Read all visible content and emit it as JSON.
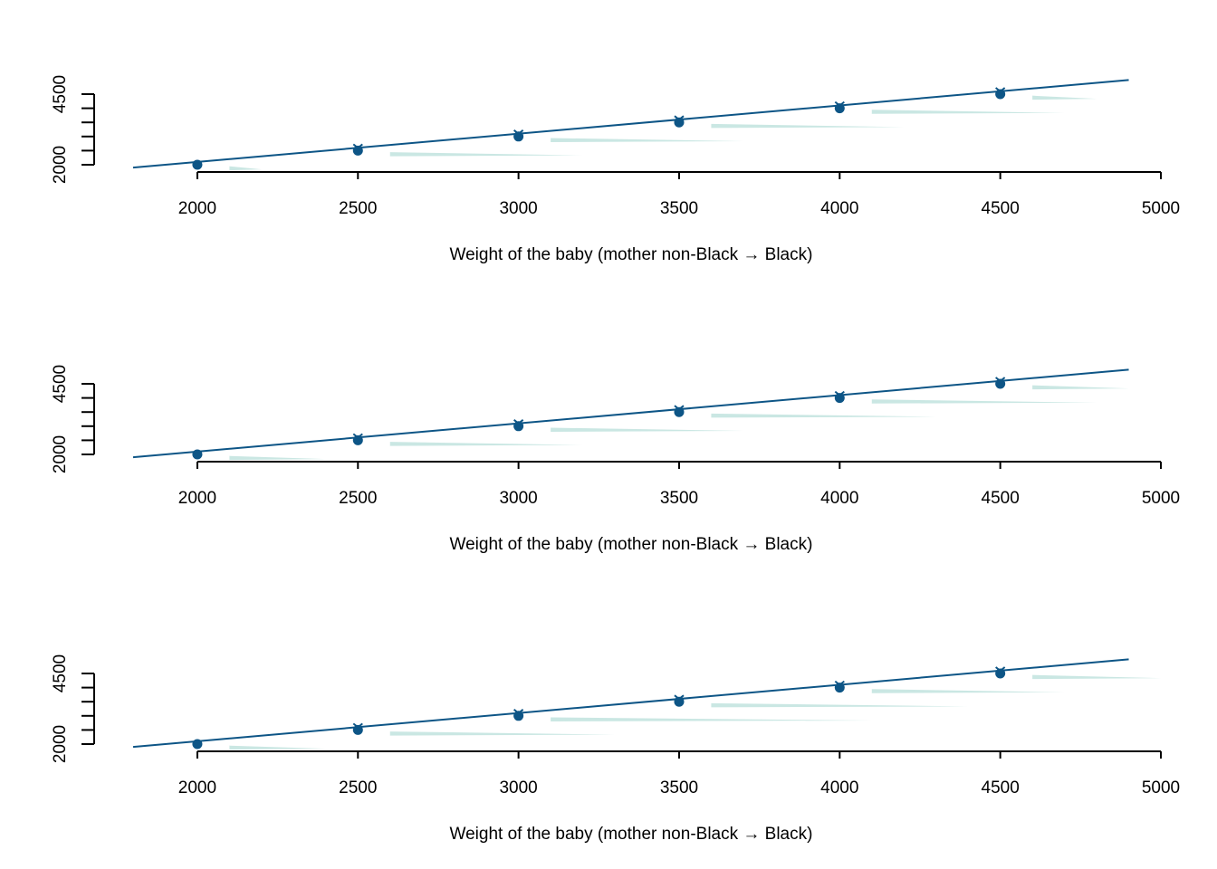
{
  "chart_data": [
    {
      "type": "line",
      "xlabel": "Weight of the baby (mother non-Black → Black)",
      "xlim": [
        1800,
        5000
      ],
      "ylim": [
        2000,
        4500
      ],
      "x_ticks": [
        2000,
        2500,
        3000,
        3500,
        4000,
        4500,
        5000
      ],
      "y_tick_labels": [
        2000,
        4500
      ],
      "y_minor_ticks": [
        2000,
        2500,
        3000,
        3500,
        4000,
        4500
      ],
      "grid": false,
      "line": {
        "x": [
          1800,
          4900
        ],
        "y": [
          1900,
          5000
        ]
      },
      "points": {
        "x": [
          2000,
          2500,
          3000,
          3500,
          4000,
          4500
        ],
        "y": [
          2000,
          2500,
          3000,
          3500,
          4000,
          4500
        ]
      },
      "densities": [
        {
          "x_start": 2100,
          "x_end": 2200,
          "y": 1850
        },
        {
          "x_start": 2600,
          "x_end": 3200,
          "y": 2350
        },
        {
          "x_start": 3100,
          "x_end": 3700,
          "y": 2850
        },
        {
          "x_start": 3600,
          "x_end": 4200,
          "y": 3350
        },
        {
          "x_start": 4100,
          "x_end": 4700,
          "y": 3850
        },
        {
          "x_start": 4600,
          "x_end": 4800,
          "y": 4350
        }
      ]
    },
    {
      "type": "line",
      "xlabel": "Weight of the baby (mother non-Black → Black)",
      "xlim": [
        1800,
        5000
      ],
      "ylim": [
        2000,
        4500
      ],
      "x_ticks": [
        2000,
        2500,
        3000,
        3500,
        4000,
        4500,
        5000
      ],
      "y_tick_labels": [
        2000,
        4500
      ],
      "y_minor_ticks": [
        2000,
        2500,
        3000,
        3500,
        4000,
        4500
      ],
      "grid": false,
      "line": {
        "x": [
          1800,
          4900
        ],
        "y": [
          1900,
          5000
        ]
      },
      "points": {
        "x": [
          2000,
          2500,
          3000,
          3500,
          4000,
          4500
        ],
        "y": [
          2000,
          2500,
          3000,
          3500,
          4000,
          4500
        ]
      },
      "densities": [
        {
          "x_start": 2100,
          "x_end": 2400,
          "y": 1850
        },
        {
          "x_start": 2600,
          "x_end": 3200,
          "y": 2350
        },
        {
          "x_start": 3100,
          "x_end": 3700,
          "y": 2850
        },
        {
          "x_start": 3600,
          "x_end": 4300,
          "y": 3350
        },
        {
          "x_start": 4100,
          "x_end": 4800,
          "y": 3850
        },
        {
          "x_start": 4600,
          "x_end": 4900,
          "y": 4350
        }
      ]
    },
    {
      "type": "line",
      "xlabel": "Weight of the baby (mother non-Black → Black)",
      "xlim": [
        1800,
        5000
      ],
      "ylim": [
        2000,
        4500
      ],
      "x_ticks": [
        2000,
        2500,
        3000,
        3500,
        4000,
        4500,
        5000
      ],
      "y_tick_labels": [
        2000,
        4500
      ],
      "y_minor_ticks": [
        2000,
        2500,
        3000,
        3500,
        4000,
        4500
      ],
      "grid": false,
      "line": {
        "x": [
          1800,
          4900
        ],
        "y": [
          1900,
          5000
        ]
      },
      "points": {
        "x": [
          2000,
          2500,
          3000,
          3500,
          4000,
          4500
        ],
        "y": [
          2000,
          2500,
          3000,
          3500,
          4000,
          4500
        ]
      },
      "densities": [
        {
          "x_start": 2100,
          "x_end": 2400,
          "y": 1850
        },
        {
          "x_start": 2600,
          "x_end": 3300,
          "y": 2350
        },
        {
          "x_start": 3100,
          "x_end": 4100,
          "y": 2850
        },
        {
          "x_start": 3600,
          "x_end": 4400,
          "y": 3350
        },
        {
          "x_start": 4100,
          "x_end": 4700,
          "y": 3850
        },
        {
          "x_start": 4600,
          "x_end": 5000,
          "y": 4350
        }
      ]
    }
  ],
  "colors": {
    "line": "#0d5586",
    "points": "#0d5586",
    "density": "#9fd3cc",
    "axis": "#000000"
  }
}
